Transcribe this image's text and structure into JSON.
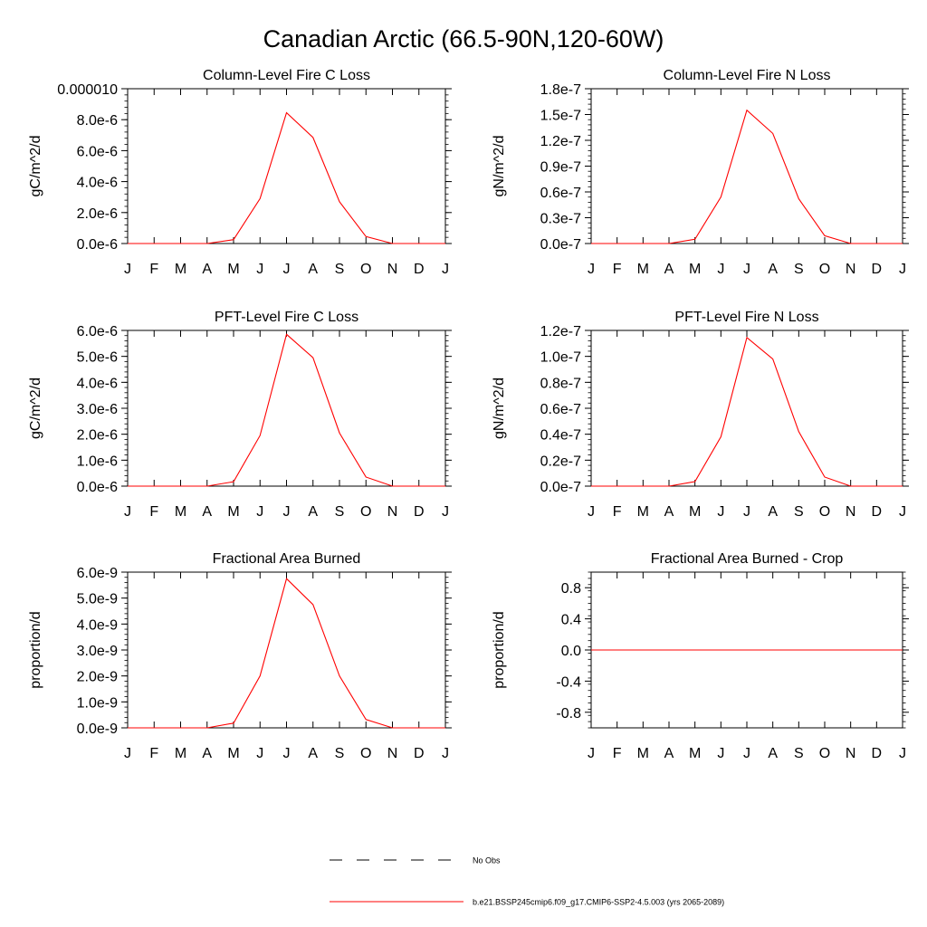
{
  "figure": {
    "title": "Canadian Arctic (66.5-90N,120-60W)"
  },
  "legend": {
    "entries": [
      {
        "label": "No Obs",
        "style": "dashed",
        "color": "#000000"
      },
      {
        "label": "b.e21.BSSP245cmip6.f09_g17.CMIP6-SSP2-4.5.003 (yrs 2065-2089)",
        "style": "solid",
        "color": "#ff0000"
      }
    ]
  },
  "chart_data": [
    {
      "type": "line",
      "title": "Column-Level Fire C Loss",
      "ylabel": "gC/m^2/d",
      "xlabel": "",
      "categories": [
        "J",
        "F",
        "M",
        "A",
        "M",
        "J",
        "J",
        "A",
        "S",
        "O",
        "N",
        "D",
        "J"
      ],
      "ylim": [
        0,
        1e-05
      ],
      "yticks": [
        0,
        2e-06,
        4e-06,
        6e-06,
        8e-06,
        1e-05
      ],
      "yticklabels": [
        "0.0e-6",
        "2.0e-6",
        "4.0e-6",
        "6.0e-6",
        "8.0e-6",
        "0.000010"
      ],
      "series": [
        {
          "name": "b.e21.BSSP245cmip6.f09_g17.CMIP6-SSP2-4.5.003 (yrs 2065-2089)",
          "color": "#ff0000",
          "values": [
            0,
            0,
            0,
            0,
            2.5e-07,
            2.9e-06,
            8.45e-06,
            6.85e-06,
            2.7e-06,
            4.5e-07,
            0,
            0,
            0
          ]
        }
      ]
    },
    {
      "type": "line",
      "title": "Column-Level Fire N Loss",
      "ylabel": "gN/m^2/d",
      "xlabel": "",
      "categories": [
        "J",
        "F",
        "M",
        "A",
        "M",
        "J",
        "J",
        "A",
        "S",
        "O",
        "N",
        "D",
        "J"
      ],
      "ylim": [
        0,
        1.8e-07
      ],
      "yticks": [
        0,
        3e-08,
        6e-08,
        9e-08,
        1.2e-07,
        1.5e-07,
        1.8e-07
      ],
      "yticklabels": [
        "0.0e-7",
        "0.3e-7",
        "0.6e-7",
        "0.9e-7",
        "1.2e-7",
        "1.5e-7",
        "1.8e-7"
      ],
      "series": [
        {
          "name": "b.e21.BSSP245cmip6.f09_g17.CMIP6-SSP2-4.5.003 (yrs 2065-2089)",
          "color": "#ff0000",
          "values": [
            0,
            0,
            0,
            0,
            5e-09,
            5.4e-08,
            1.55e-07,
            1.28e-07,
            5.2e-08,
            9e-09,
            0,
            0,
            0
          ]
        }
      ]
    },
    {
      "type": "line",
      "title": "PFT-Level Fire C Loss",
      "ylabel": "gC/m^2/d",
      "xlabel": "",
      "categories": [
        "J",
        "F",
        "M",
        "A",
        "M",
        "J",
        "J",
        "A",
        "S",
        "O",
        "N",
        "D",
        "J"
      ],
      "ylim": [
        0,
        6e-06
      ],
      "yticks": [
        0,
        1e-06,
        2e-06,
        3e-06,
        4e-06,
        5e-06,
        6e-06
      ],
      "yticklabels": [
        "0.0e-6",
        "1.0e-6",
        "2.0e-6",
        "3.0e-6",
        "4.0e-6",
        "5.0e-6",
        "6.0e-6"
      ],
      "series": [
        {
          "name": "b.e21.BSSP245cmip6.f09_g17.CMIP6-SSP2-4.5.003 (yrs 2065-2089)",
          "color": "#ff0000",
          "values": [
            0,
            0,
            0,
            0,
            1.7e-07,
            1.95e-06,
            5.85e-06,
            4.95e-06,
            2.05e-06,
            3.5e-07,
            0,
            0,
            0
          ]
        }
      ]
    },
    {
      "type": "line",
      "title": "PFT-Level Fire N Loss",
      "ylabel": "gN/m^2/d",
      "xlabel": "",
      "categories": [
        "J",
        "F",
        "M",
        "A",
        "M",
        "J",
        "J",
        "A",
        "S",
        "O",
        "N",
        "D",
        "J"
      ],
      "ylim": [
        0,
        1.2e-07
      ],
      "yticks": [
        0,
        2e-08,
        4e-08,
        6e-08,
        8e-08,
        1e-07,
        1.2e-07
      ],
      "yticklabels": [
        "0.0e-7",
        "0.2e-7",
        "0.4e-7",
        "0.6e-7",
        "0.8e-7",
        "1.0e-7",
        "1.2e-7"
      ],
      "series": [
        {
          "name": "b.e21.BSSP245cmip6.f09_g17.CMIP6-SSP2-4.5.003 (yrs 2065-2089)",
          "color": "#ff0000",
          "values": [
            0,
            0,
            0,
            0,
            3.5e-09,
            3.8e-08,
            1.145e-07,
            9.8e-08,
            4.2e-08,
            7e-09,
            0,
            0,
            0
          ]
        }
      ]
    },
    {
      "type": "line",
      "title": "Fractional Area Burned",
      "ylabel": "proportion/d",
      "xlabel": "",
      "categories": [
        "J",
        "F",
        "M",
        "A",
        "M",
        "J",
        "J",
        "A",
        "S",
        "O",
        "N",
        "D",
        "J"
      ],
      "ylim": [
        0,
        6e-09
      ],
      "yticks": [
        0,
        1e-09,
        2e-09,
        3e-09,
        4e-09,
        5e-09,
        6e-09
      ],
      "yticklabels": [
        "0.0e-9",
        "1.0e-9",
        "2.0e-9",
        "3.0e-9",
        "4.0e-9",
        "5.0e-9",
        "6.0e-9"
      ],
      "series": [
        {
          "name": "b.e21.BSSP245cmip6.f09_g17.CMIP6-SSP2-4.5.003 (yrs 2065-2089)",
          "color": "#ff0000",
          "values": [
            0,
            0,
            0,
            0,
            1.8e-10,
            2e-09,
            5.75e-09,
            4.75e-09,
            2e-09,
            3.2e-10,
            0,
            0,
            0
          ]
        }
      ]
    },
    {
      "type": "line",
      "title": "Fractional Area Burned - Crop",
      "ylabel": "proportion/d",
      "xlabel": "",
      "categories": [
        "J",
        "F",
        "M",
        "A",
        "M",
        "J",
        "J",
        "A",
        "S",
        "O",
        "N",
        "D",
        "J"
      ],
      "ylim": [
        -1.0,
        1.0
      ],
      "yticks": [
        -0.8,
        -0.4,
        0.0,
        0.4,
        0.8
      ],
      "yticklabels": [
        "-0.8",
        "-0.4",
        "0.0",
        "0.4",
        "0.8"
      ],
      "series": [
        {
          "name": "b.e21.BSSP245cmip6.f09_g17.CMIP6-SSP2-4.5.003 (yrs 2065-2089)",
          "color": "#ff0000",
          "values": [
            0,
            0,
            0,
            0,
            0,
            0,
            0,
            0,
            0,
            0,
            0,
            0,
            0
          ]
        }
      ]
    }
  ]
}
